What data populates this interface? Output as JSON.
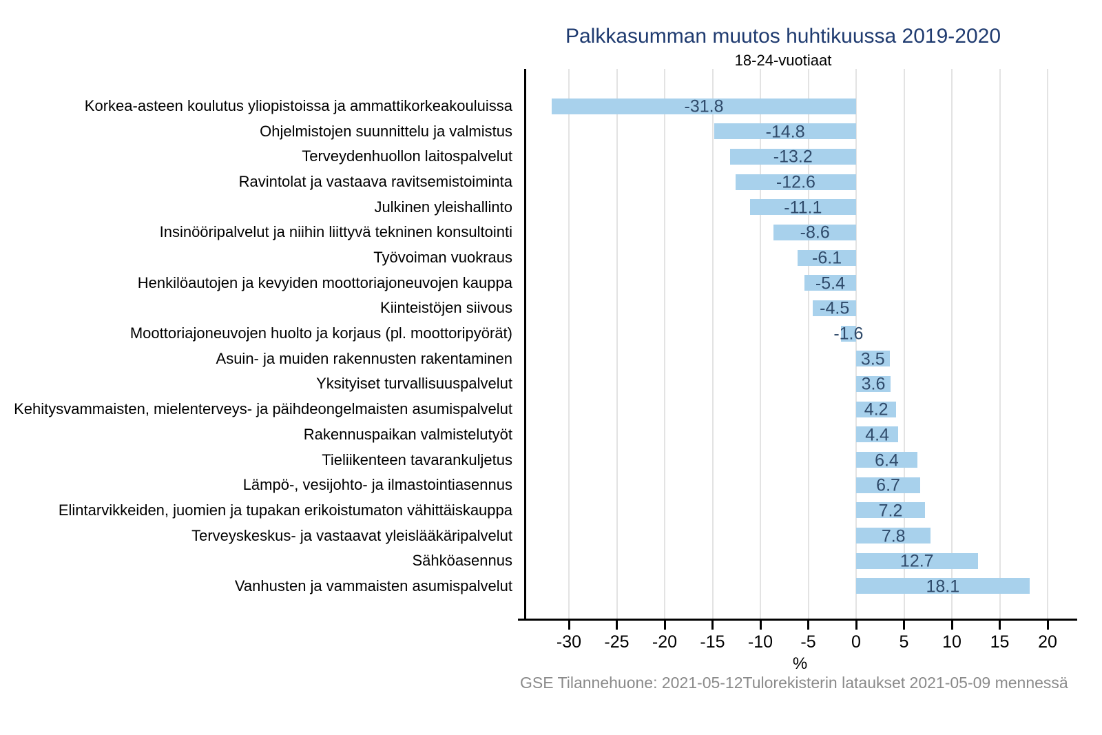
{
  "chart_data": {
    "type": "bar",
    "orientation": "horizontal",
    "title": "Palkkasumman muutos huhtikuussa 2019-2020",
    "subtitle": "18-24-vuotiaat",
    "xlabel": "%",
    "xlim": [
      -34.8,
      23.0
    ],
    "xticks": [
      -30,
      -25,
      -20,
      -15,
      -10,
      -5,
      0,
      5,
      10,
      15,
      20
    ],
    "grid": "vertical-gridlines-on",
    "legend": "none",
    "bar_color": "#A8D1EC",
    "value_label_color": "#2F4A6A",
    "gridline_color": "#E3E3E3",
    "title_color": "#1F3B70",
    "footer_color": "#8A8A8A",
    "categories": [
      "Korkea-asteen koulutus yliopistoissa ja ammattikorkeakouluissa",
      "Ohjelmistojen suunnittelu ja valmistus",
      "Terveydenhuollon laitospalvelut",
      "Ravintolat ja vastaava ravitsemistoiminta",
      "Julkinen yleishallinto",
      "Insinööripalvelut ja niihin liittyvä tekninen konsultointi",
      "Työvoiman vuokraus",
      "Henkilöautojen ja kevyiden moottoriajoneuvojen kauppa",
      "Kiinteistöjen siivous",
      "Moottoriajoneuvojen huolto ja korjaus (pl. moottoripyörät)",
      "Asuin- ja muiden rakennusten rakentaminen",
      "Yksityiset turvallisuuspalvelut",
      "Kehitysvammaisten, mielenterveys- ja päihdeongelmaisten asumispalvelut",
      "Rakennuspaikan valmistelutyöt",
      "Tieliikenteen tavarankuljetus",
      "Lämpö-, vesijohto- ja ilmastointiasennus",
      "Elintarvikkeiden, juomien ja tupakan erikoistumaton vähittäiskauppa",
      "Terveyskeskus- ja vastaavat yleislääkäripalvelut",
      "Sähköasennus",
      "Vanhusten ja vammaisten asumispalvelut"
    ],
    "values": [
      -31.8,
      -14.8,
      -13.2,
      -12.6,
      -11.1,
      -8.6,
      -6.1,
      -5.4,
      -4.5,
      -1.6,
      3.5,
      3.6,
      4.2,
      4.4,
      6.4,
      6.7,
      7.2,
      7.8,
      12.7,
      18.1
    ],
    "value_labels": [
      "-31.8",
      "-14.8",
      "-13.2",
      "-12.6",
      "-11.1",
      "-8.6",
      "-6.1",
      "-5.4",
      "-4.5",
      "-1.6",
      "3.5",
      "3.6",
      "4.2",
      "4.4",
      "6.4",
      "6.7",
      "7.2",
      "7.8",
      "12.7",
      "18.1"
    ]
  },
  "footer": {
    "left": "GSE Tilannehuone: 2021-05-12",
    "right": "Tulorekisterin lataukset 2021-05-09 mennessä"
  }
}
